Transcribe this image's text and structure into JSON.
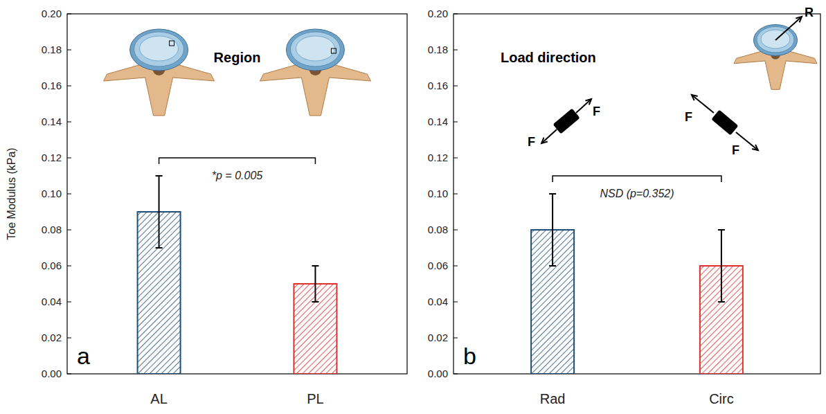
{
  "chart_data": [
    {
      "type": "bar",
      "panel_label": "a",
      "title": "Region",
      "y_label": "Toe Modulus (kPa)",
      "categories": [
        "AL",
        "PL"
      ],
      "values": [
        0.09,
        0.05
      ],
      "errors": [
        0.02,
        0.01
      ],
      "colors": [
        "#1f4e79",
        "#e03030"
      ],
      "ylim": [
        0,
        0.2
      ],
      "yticks": [
        {
          "value": 0,
          "label": "0.00"
        },
        {
          "value": 0.02,
          "label": "0.02"
        },
        {
          "value": 0.04,
          "label": "0.04"
        },
        {
          "value": 0.06,
          "label": "0.06"
        },
        {
          "value": 0.08,
          "label": "0.08"
        },
        {
          "value": 0.1,
          "label": "0.10"
        },
        {
          "value": 0.12,
          "label": "0.12"
        },
        {
          "value": 0.14,
          "label": "0.14"
        },
        {
          "value": 0.16,
          "label": "0.16"
        },
        {
          "value": 0.18,
          "label": "0.18"
        },
        {
          "value": 0.2,
          "label": "0.20"
        }
      ],
      "grid": false,
      "bracket_label": "*p = 0.005"
    },
    {
      "type": "bar",
      "panel_label": "b",
      "title": "Load direction",
      "categories": [
        "Rad",
        "Circ"
      ],
      "values": [
        0.08,
        0.06
      ],
      "errors": [
        0.02,
        0.02
      ],
      "colors": [
        "#1f4e79",
        "#e03030"
      ],
      "ylim": [
        0,
        0.2
      ],
      "yticks": [
        {
          "value": 0,
          "label": "0.00"
        },
        {
          "value": 0.02,
          "label": "0.02"
        },
        {
          "value": 0.04,
          "label": "0.04"
        },
        {
          "value": 0.06,
          "label": "0.06"
        },
        {
          "value": 0.08,
          "label": "0.08"
        },
        {
          "value": 0.1,
          "label": "0.10"
        },
        {
          "value": 0.12,
          "label": "0.12"
        },
        {
          "value": 0.14,
          "label": "0.14"
        },
        {
          "value": 0.16,
          "label": "0.16"
        },
        {
          "value": 0.18,
          "label": "0.18"
        },
        {
          "value": 0.2,
          "label": "0.20"
        }
      ],
      "grid": false,
      "bracket_label": "NSD (p=0.352)",
      "icon_labels": [
        "F",
        "F",
        "F",
        "F",
        "R"
      ]
    }
  ]
}
